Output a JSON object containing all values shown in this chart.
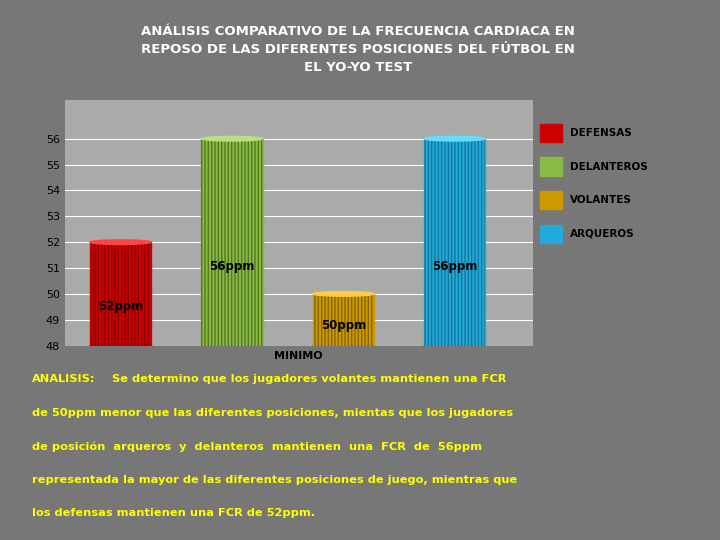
{
  "title_line1": "ANÁLISIS COMPARATIVO DE LA FRECUENCIA CARDIACA EN",
  "title_line2": "REPOSO DE LAS DIFERENTES POSICIONES DEL FÚTBOL EN",
  "title_line3": "EL YO-YO TEST",
  "categories": [
    "DEFENSAS",
    "DELANTEROS",
    "VOLANTES",
    "ARQUEROS"
  ],
  "values": [
    52,
    56,
    50,
    56
  ],
  "bar_colors": [
    "#cc0000",
    "#88bb44",
    "#cc9900",
    "#22aadd"
  ],
  "bar_colors_dark": [
    "#880000",
    "#557722",
    "#886600",
    "#117799"
  ],
  "bar_colors_top": [
    "#ff4444",
    "#bbdd88",
    "#ffcc44",
    "#66ddff"
  ],
  "labels": [
    "52ppm",
    "56ppm",
    "50ppm",
    "56ppm"
  ],
  "xlabel": "MINIMO",
  "ylim_min": 48,
  "ylim_max": 57,
  "yticks": [
    48,
    49,
    50,
    51,
    52,
    53,
    54,
    55,
    56
  ],
  "legend_colors": [
    "#cc0000",
    "#88bb44",
    "#cc9900",
    "#22aadd"
  ],
  "legend_labels": [
    "DEFENSAS",
    "DELANTEROS",
    "VOLANTES",
    "ARQUEROS"
  ],
  "bg_color": "#777777",
  "chart_bg": "#aaaaaa",
  "title_bg": "#111111",
  "bottom_bg": "#111111",
  "text_color": "#ffff00",
  "analysis_bold": "ANALISIS:",
  "analysis_lines": [
    " Se determino que los jugadores volantes mantienen una FCR",
    "de 50ppm menor que las diferentes posiciones, mientas que los jugadores",
    "de posición  arqueros  y  delanteros  mantienen  una  FCR  de  56ppm",
    "representada la mayor de las diferentes posiciones de juego, mientras que",
    "los defensas mantienen una FCR de 52ppm."
  ]
}
